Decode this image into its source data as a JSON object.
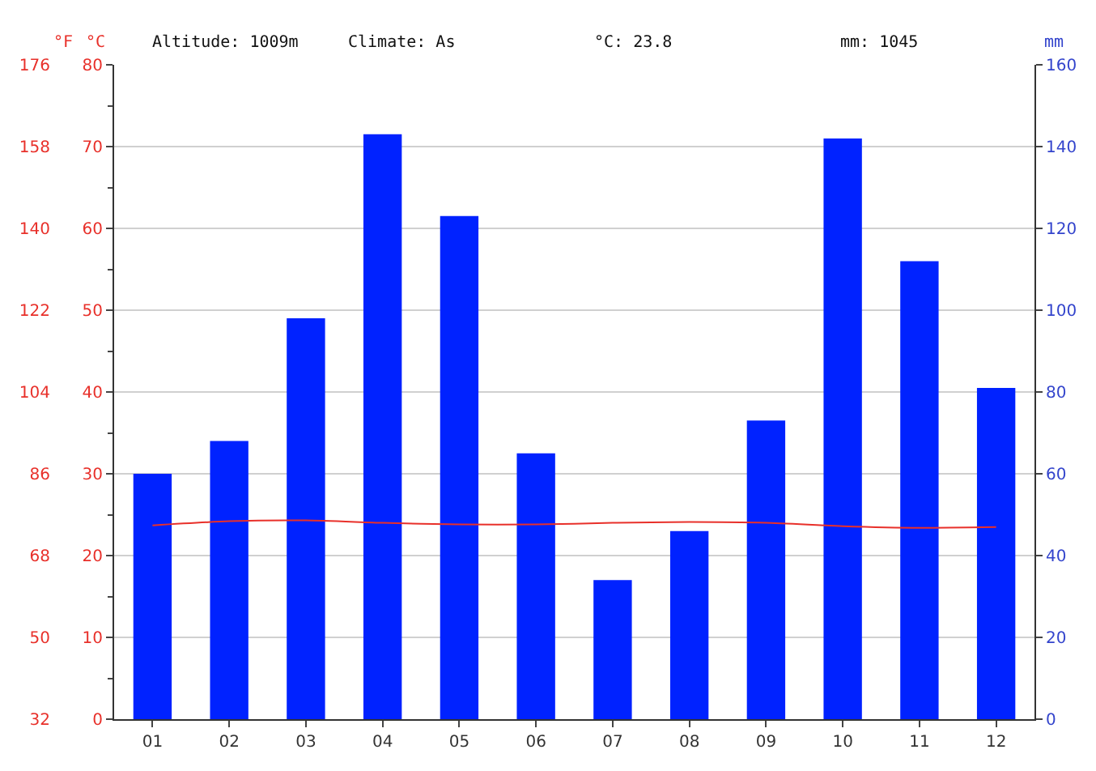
{
  "chart_data": {
    "type": "bar",
    "categories": [
      "01",
      "02",
      "03",
      "04",
      "05",
      "06",
      "07",
      "08",
      "09",
      "10",
      "11",
      "12"
    ],
    "series": [
      {
        "axis": "y2",
        "color": "#0022ff",
        "values": [
          60,
          68,
          98,
          143,
          123,
          65,
          34,
          46,
          73,
          142,
          112,
          81
        ]
      },
      {
        "type": "line",
        "axis": "y",
        "color": "#e8302a",
        "values": [
          23.7,
          24.2,
          24.3,
          24.0,
          23.8,
          23.8,
          24.0,
          24.1,
          24.0,
          23.6,
          23.4,
          23.5
        ]
      }
    ],
    "ylabel": "°C",
    "y2label": "mm",
    "y3label": "°F",
    "ylim": [
      0,
      80
    ],
    "yticks": [
      0,
      10,
      20,
      30,
      40,
      50,
      60,
      70,
      80
    ],
    "y2lim": [
      0,
      160
    ],
    "y2ticks": [
      0,
      20,
      40,
      60,
      80,
      100,
      120,
      140,
      160
    ],
    "y3lim": [
      32,
      176
    ],
    "y3ticks": [
      32,
      50,
      68,
      86,
      104,
      122,
      140,
      158,
      176
    ],
    "annotations": [
      "Altitude: 1009m",
      "Climate: As",
      "°C: 23.8",
      "mm: 1045"
    ],
    "grid": "y",
    "marker": "none",
    "line_style": "solid"
  }
}
